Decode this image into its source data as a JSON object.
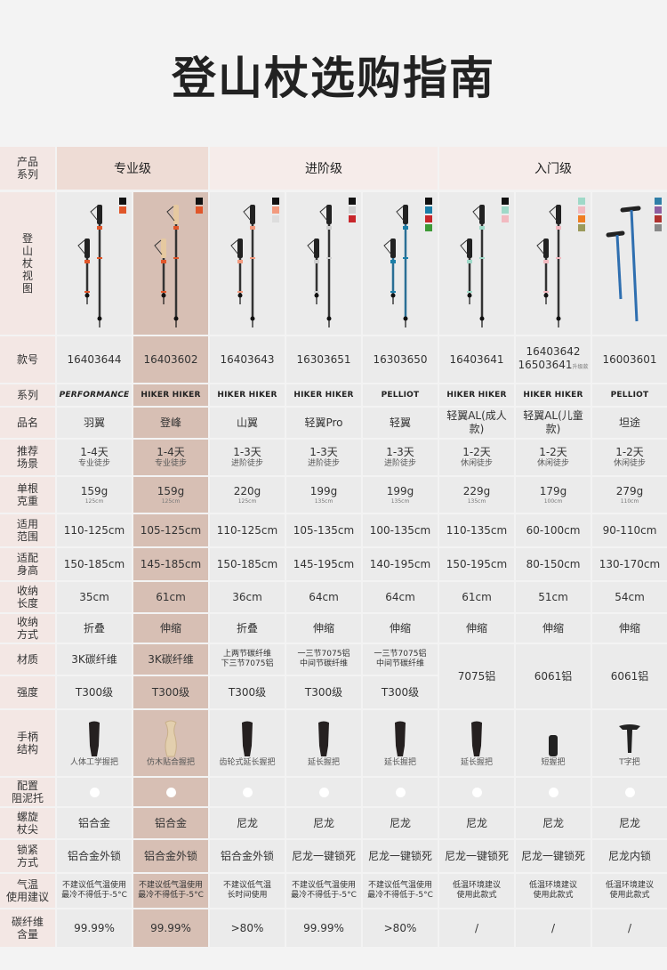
{
  "title": "登山杖选购指南",
  "table": {
    "row_labels": {
      "group": "产品\n系列",
      "image": "登\n山\n杖\n视\n图",
      "model": "款号",
      "series": "系列",
      "name": "品名",
      "scene": "推荐\n场景",
      "weight": "单根\n克重",
      "range": "适用\n范围",
      "height": "适配\n身高",
      "fold_len": "收纳\n长度",
      "fold_way": "收纳\n方式",
      "material": "材质",
      "strength": "强度",
      "grip": "手柄\n结构",
      "mud": "配置\n阻泥托",
      "tip": "螺旋\n杖尖",
      "lock": "锁紧\n方式",
      "temp": "气温\n使用建议",
      "carbon": "碳纤维\n含量"
    },
    "groups": [
      {
        "name": "专业级",
        "span": 2
      },
      {
        "name": "进阶级",
        "span": 3
      },
      {
        "name": "入门级",
        "span": 3
      }
    ],
    "products": [
      {
        "colors": [
          "#111111",
          "#e0562a"
        ],
        "model": "16403644",
        "series": "PERFORMANCE",
        "name": "羽翼",
        "scene": "1-4天",
        "scene_sub": "专业徒步",
        "weight": "159g",
        "weight_sub": "125cm",
        "range": "110-125cm",
        "height": "150-185cm",
        "fold_len": "35cm",
        "fold_way": "折叠",
        "material": "3K碳纤维",
        "strength": "T300级",
        "grip": "人体工学握把",
        "tip": "铝合金",
        "lock": "铝合金外锁",
        "temp": "不建议低气温使用\n最冷不得低于-5°C",
        "carbon": "99.99%"
      },
      {
        "colors": [
          "#111111",
          "#e0562a"
        ],
        "model": "16403602",
        "series": "HIKER HIKER",
        "name": "登峰",
        "scene": "1-4天",
        "scene_sub": "专业徒步",
        "weight": "159g",
        "weight_sub": "125cm",
        "range": "105-125cm",
        "height": "145-185cm",
        "fold_len": "61cm",
        "fold_way": "伸缩",
        "material": "3K碳纤维",
        "strength": "T300级",
        "grip": "仿木贴合握把",
        "tip": "铝合金",
        "lock": "铝合金外锁",
        "temp": "不建议低气温使用\n最冷不得低于-5°C",
        "carbon": "99.99%"
      },
      {
        "colors": [
          "#111111",
          "#f29a7e",
          "#dddddd"
        ],
        "model": "16403643",
        "series": "HIKER HIKER",
        "name": "山翼",
        "scene": "1-3天",
        "scene_sub": "进阶徒步",
        "weight": "220g",
        "weight_sub": "125cm",
        "range": "110-125cm",
        "height": "150-185cm",
        "fold_len": "36cm",
        "fold_way": "折叠",
        "material": "上两节碳纤维\n下三节7075铝",
        "strength": "T300级",
        "grip": "齿轮式延长握把",
        "tip": "尼龙",
        "lock": "铝合金外锁",
        "temp": "不建议低气温\n长时间使用",
        "carbon": ">80%"
      },
      {
        "colors": [
          "#111111",
          "#d0d0d0",
          "#c8262b"
        ],
        "model": "16303651",
        "series": "HIKER HIKER",
        "name": "轻翼Pro",
        "scene": "1-3天",
        "scene_sub": "进阶徒步",
        "weight": "199g",
        "weight_sub": "135cm",
        "range": "105-135cm",
        "height": "145-195cm",
        "fold_len": "64cm",
        "fold_way": "伸缩",
        "material": "一三节7075铝\n中间节碳纤维",
        "strength": "T300级",
        "grip": "延长握把",
        "tip": "尼龙",
        "lock": "尼龙一键锁死",
        "temp": "不建议低气温使用\n最冷不得低于-5°C",
        "carbon": "99.99%"
      },
      {
        "colors": [
          "#111111",
          "#1b7ea8",
          "#c8262b",
          "#3e9a37"
        ],
        "model": "16303650",
        "series": "PELLIOT",
        "name": "轻翼",
        "scene": "1-3天",
        "scene_sub": "进阶徒步",
        "weight": "199g",
        "weight_sub": "135cm",
        "range": "100-135cm",
        "height": "140-195cm",
        "fold_len": "64cm",
        "fold_way": "伸缩",
        "material": "一三节7075铝\n中间节碳纤维",
        "strength": "T300级",
        "grip": "延长握把",
        "tip": "尼龙",
        "lock": "尼龙一键锁死",
        "temp": "不建议低气温使用\n最冷不得低于-5°C",
        "carbon": ">80%"
      },
      {
        "colors": [
          "#111111",
          "#9fd9c8",
          "#f2b9c0"
        ],
        "model": "16403641",
        "series": "HIKER HIKER",
        "name": "轻翼AL(成人款)",
        "scene": "1-2天",
        "scene_sub": "休闲徒步",
        "weight": "229g",
        "weight_sub": "135cm",
        "range": "110-135cm",
        "height": "150-195cm",
        "fold_len": "61cm",
        "fold_way": "伸缩",
        "material": "7075铝",
        "grip": "延长握把",
        "tip": "尼龙",
        "lock": "尼龙一键锁死",
        "temp": "低温环境建议\n使用此款式",
        "carbon": "/"
      },
      {
        "colors": [
          "#9fd9c8",
          "#f2b9c0",
          "#ef7d22",
          "#9b9a5a"
        ],
        "model": "16403642\n16503641",
        "model_note": "升级款",
        "series": "HIKER HIKER",
        "name": "轻翼AL(儿童款)",
        "scene": "1-2天",
        "scene_sub": "休闲徒步",
        "weight": "179g",
        "weight_sub": "100cm",
        "range": "60-100cm",
        "height": "80-150cm",
        "fold_len": "51cm",
        "fold_way": "伸缩",
        "material": "6061铝",
        "grip": "短握把",
        "tip": "尼龙",
        "lock": "尼龙一键锁死",
        "temp": "低温环境建议\n使用此款式",
        "carbon": "/"
      },
      {
        "colors": [
          "#2f7fa8",
          "#8e5ea0",
          "#b0322f",
          "#888888"
        ],
        "model": "16003601",
        "series": "PELLIOT",
        "name": "坦途",
        "scene": "1-2天",
        "scene_sub": "休闲徒步",
        "weight": "279g",
        "weight_sub": "110cm",
        "range": "90-110cm",
        "height": "130-170cm",
        "fold_len": "54cm",
        "fold_way": "伸缩",
        "material": "6061铝",
        "grip": "T字把",
        "tip": "尼龙",
        "lock": "尼龙内锁",
        "temp": "低温环境建议\n使用此款式",
        "carbon": "/"
      }
    ]
  }
}
